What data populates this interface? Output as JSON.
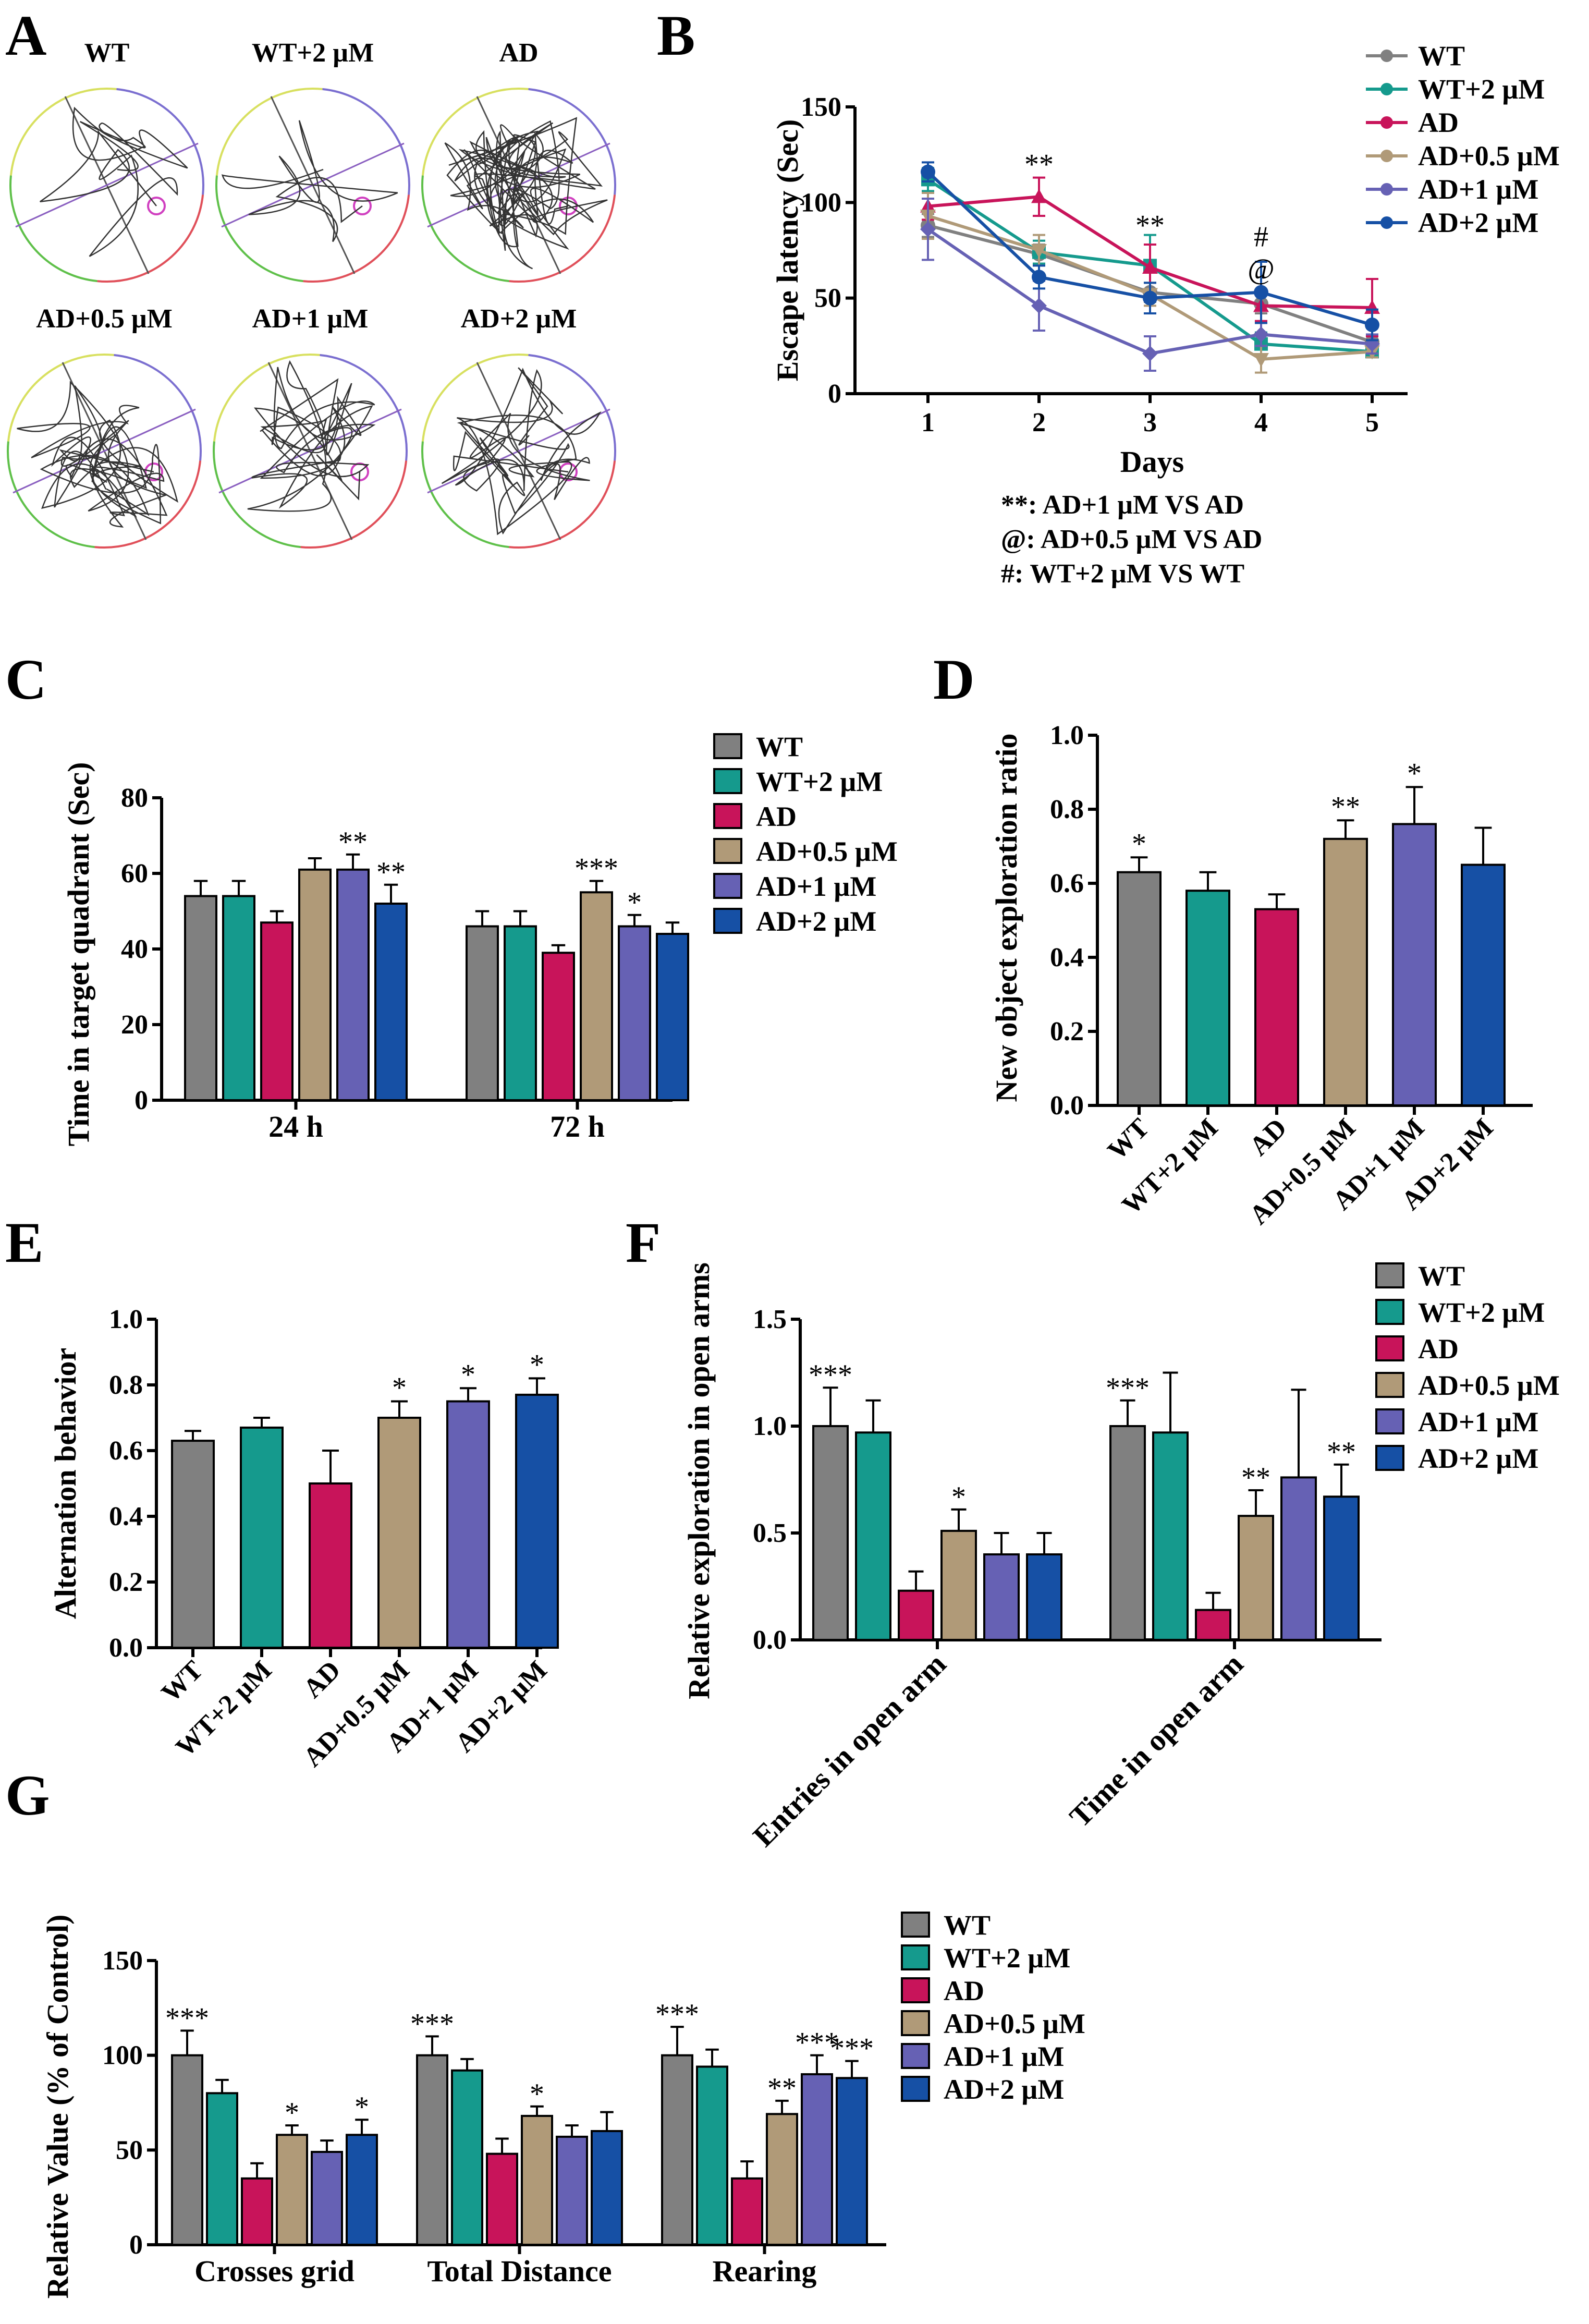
{
  "colors": {
    "WT": "#808080",
    "WT+2 µM": "#159a8d",
    "AD": "#c8145a",
    "AD+0.5 µM": "#b09a78",
    "AD+1 µM": "#6661b4",
    "AD+2 µM": "#1650a5"
  },
  "panels": {
    "A": "A",
    "B": "B",
    "C": "C",
    "D": "D",
    "E": "E",
    "F": "F",
    "G": "G"
  },
  "mazes": {
    "titles": [
      "WT",
      "WT+2 µM",
      "AD",
      "AD+0.5 µM",
      "AD+1 µM",
      "AD+2 µM"
    ]
  },
  "chart_data": [
    {
      "id": "B",
      "type": "line",
      "ylabel": "Escape latency (Sec)",
      "xlabel": "Days",
      "x": [
        1,
        2,
        3,
        4,
        5
      ],
      "xticks": [
        "1",
        "2",
        "3",
        "4",
        "5"
      ],
      "ylim": [
        0,
        150
      ],
      "yticks": [
        "0",
        "50",
        "100",
        "150"
      ],
      "series": [
        {
          "name": "WT",
          "marker": "circle",
          "values": [
            88,
            73,
            53,
            47,
            27
          ],
          "err": [
            6,
            5,
            5,
            5,
            3
          ]
        },
        {
          "name": "WT+2 µM",
          "marker": "square",
          "values": [
            112,
            74,
            67,
            26,
            22
          ],
          "err": [
            6,
            6,
            16,
            6,
            3
          ]
        },
        {
          "name": "AD",
          "marker": "triangle",
          "values": [
            98,
            103,
            66,
            46,
            45
          ],
          "err": [
            7,
            10,
            12,
            8,
            15
          ]
        },
        {
          "name": "AD+0.5 µM",
          "marker": "tri-down",
          "values": [
            93,
            75,
            52,
            18,
            22
          ],
          "err": [
            12,
            8,
            6,
            7,
            3
          ]
        },
        {
          "name": "AD+1 µM",
          "marker": "diamond",
          "values": [
            86,
            46,
            21,
            31,
            26
          ],
          "err": [
            16,
            13,
            9,
            6,
            5
          ]
        },
        {
          "name": "AD+2 µM",
          "marker": "circle",
          "values": [
            116,
            61,
            50,
            53,
            36
          ],
          "err": [
            5,
            6,
            8,
            16,
            8
          ]
        }
      ],
      "annotations": [
        {
          "x": 2,
          "text": "**"
        },
        {
          "x": 3,
          "text": "**"
        },
        {
          "x": 4,
          "text": "#"
        },
        {
          "x": 4,
          "text": "@"
        }
      ],
      "notes": [
        "**: AD+1 µM VS AD",
        "@: AD+0.5 µM VS AD",
        "#: WT+2 µM VS WT"
      ]
    },
    {
      "id": "C",
      "type": "bar",
      "ylabel": "Time in target quadrant (Sec)",
      "categories": [
        "24 h",
        "72 h"
      ],
      "ylim": [
        0,
        80
      ],
      "yticks": [
        "0",
        "20",
        "40",
        "60",
        "80"
      ],
      "series": [
        {
          "name": "WT",
          "values": [
            54,
            46
          ],
          "err": [
            4,
            4
          ],
          "stars": [
            "",
            ""
          ]
        },
        {
          "name": "WT+2 µM",
          "values": [
            54,
            46
          ],
          "err": [
            4,
            4
          ],
          "stars": [
            "",
            ""
          ]
        },
        {
          "name": "AD",
          "values": [
            47,
            39
          ],
          "err": [
            3,
            2
          ],
          "stars": [
            "",
            ""
          ]
        },
        {
          "name": "AD+0.5 µM",
          "values": [
            61,
            55
          ],
          "err": [
            3,
            3
          ],
          "stars": [
            "",
            "***"
          ]
        },
        {
          "name": "AD+1 µM",
          "values": [
            61,
            46
          ],
          "err": [
            4,
            3
          ],
          "stars": [
            "**",
            "*"
          ]
        },
        {
          "name": "AD+2 µM",
          "values": [
            52,
            44
          ],
          "err": [
            5,
            3
          ],
          "stars": [
            "**",
            ""
          ]
        }
      ]
    },
    {
      "id": "D",
      "type": "bar",
      "ylabel": "New object exploration ratio",
      "categories": [
        "WT",
        "WT+2 µM",
        "AD",
        "AD+0.5 µM",
        "AD+1 µM",
        "AD+2 µM"
      ],
      "values": [
        0.63,
        0.58,
        0.53,
        0.72,
        0.76,
        0.65
      ],
      "err": [
        0.04,
        0.05,
        0.04,
        0.05,
        0.1,
        0.1
      ],
      "stars": [
        "*",
        "",
        "",
        "**",
        "*",
        ""
      ],
      "ylim": [
        0,
        1.0
      ],
      "yticks": [
        "0.0",
        "0.2",
        "0.4",
        "0.6",
        "0.8",
        "1.0"
      ]
    },
    {
      "id": "E",
      "type": "bar",
      "ylabel": "Alternation behavior",
      "categories": [
        "WT",
        "WT+2 µM",
        "AD",
        "AD+0.5 µM",
        "AD+1 µM",
        "AD+2 µM"
      ],
      "values": [
        0.63,
        0.67,
        0.5,
        0.7,
        0.75,
        0.77
      ],
      "err": [
        0.03,
        0.03,
        0.1,
        0.05,
        0.04,
        0.05
      ],
      "stars": [
        "",
        "",
        "",
        "*",
        "*",
        "*"
      ],
      "ylim": [
        0,
        1.0
      ],
      "yticks": [
        "0.0",
        "0.2",
        "0.4",
        "0.6",
        "0.8",
        "1.0"
      ]
    },
    {
      "id": "F",
      "type": "bar",
      "ylabel": "Relative exploration in open arms",
      "categories": [
        "Entries in open arm",
        "Time in open arm"
      ],
      "ylim": [
        0,
        1.5
      ],
      "yticks": [
        "0.0",
        "0.5",
        "1.0",
        "1.5"
      ],
      "series": [
        {
          "name": "WT",
          "values": [
            1.0,
            1.0
          ],
          "err": [
            0.18,
            0.12
          ],
          "stars": [
            "***",
            "***"
          ]
        },
        {
          "name": "WT+2 µM",
          "values": [
            0.97,
            0.97
          ],
          "err": [
            0.15,
            0.28
          ],
          "stars": [
            "",
            ""
          ]
        },
        {
          "name": "AD",
          "values": [
            0.23,
            0.14
          ],
          "err": [
            0.09,
            0.08
          ],
          "stars": [
            "",
            ""
          ]
        },
        {
          "name": "AD+0.5 µM",
          "values": [
            0.51,
            0.58
          ],
          "err": [
            0.1,
            0.12
          ],
          "stars": [
            "*",
            "**"
          ]
        },
        {
          "name": "AD+1 µM",
          "values": [
            0.4,
            0.76
          ],
          "err": [
            0.1,
            0.41
          ],
          "stars": [
            "",
            ""
          ]
        },
        {
          "name": "AD+2 µM",
          "values": [
            0.4,
            0.67
          ],
          "err": [
            0.1,
            0.15
          ],
          "stars": [
            "",
            "**"
          ]
        }
      ]
    },
    {
      "id": "G",
      "type": "bar",
      "ylabel": "Relative Value (% of Control)",
      "categories": [
        "Crosses grid",
        "Total Distance",
        "Rearing"
      ],
      "ylim": [
        0,
        150
      ],
      "yticks": [
        "0",
        "50",
        "100",
        "150"
      ],
      "series": [
        {
          "name": "WT",
          "values": [
            100,
            100,
            100
          ],
          "err": [
            13,
            10,
            15
          ],
          "stars": [
            "***",
            "***",
            "***"
          ]
        },
        {
          "name": "WT+2 µM",
          "values": [
            80,
            92,
            94
          ],
          "err": [
            7,
            6,
            9
          ],
          "stars": [
            "",
            "",
            ""
          ]
        },
        {
          "name": "AD",
          "values": [
            35,
            48,
            35
          ],
          "err": [
            8,
            8,
            9
          ],
          "stars": [
            "",
            "",
            ""
          ]
        },
        {
          "name": "AD+0.5 µM",
          "values": [
            58,
            68,
            69
          ],
          "err": [
            5,
            5,
            7
          ],
          "stars": [
            "*",
            "*",
            "**"
          ]
        },
        {
          "name": "AD+1 µM",
          "values": [
            49,
            57,
            90
          ],
          "err": [
            6,
            6,
            10
          ],
          "stars": [
            "",
            "",
            "***"
          ]
        },
        {
          "name": "AD+2 µM",
          "values": [
            58,
            60,
            88
          ],
          "err": [
            8,
            10,
            9
          ],
          "stars": [
            "*",
            "",
            "***"
          ]
        }
      ]
    }
  ]
}
